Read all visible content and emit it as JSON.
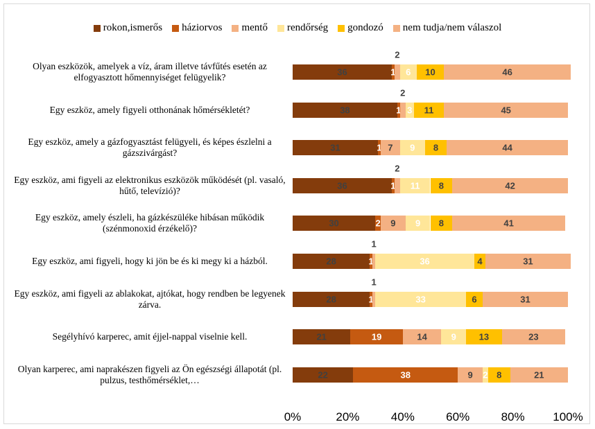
{
  "chart_data": {
    "type": "stacked_bar_horizontal",
    "categories": [
      "Olyan eszközök, amelyek a víz, áram illetve távfűtés esetén az elfogyasztott hőmennyiséget felügyelik?",
      "Egy eszköz, amely figyeli otthonának hőmérsékletét?",
      "Egy eszköz, amely a gázfogyasztást felügyeli, és képes észlelni a gázszivárgást?",
      "Egy eszköz, ami figyeli az elektronikus eszközök működését (pl. vasaló, hűtő, televízió)?",
      "Egy eszköz, amely észleli, ha gázkészüléke hibásan működik (szénmonoxid érzékelő)?",
      "Egy eszköz, ami figyeli, hogy ki jön be és ki megy ki a házból.",
      "Egy eszköz, ami figyeli az ablakokat, ajtókat, hogy rendben be legyenek zárva.",
      "Segélyhívó karperec, amit éjjel-nappal viselnie kell.",
      "Olyan karperec, ami naprakészen figyeli az Ön egészségi állapotát (pl. pulzus, testhőmérséklet,…"
    ],
    "series": [
      {
        "name": "rokon,ismerős",
        "color": "#843c0c",
        "values": [
          36,
          38,
          31,
          36,
          30,
          28,
          28,
          21,
          22
        ]
      },
      {
        "name": "háziorvos",
        "color": "#c55a11",
        "values": [
          1,
          1,
          1,
          1,
          2,
          1,
          1,
          19,
          38
        ]
      },
      {
        "name": "mentő",
        "color": "#f4b183",
        "values": [
          2,
          2,
          7,
          2,
          9,
          1,
          1,
          14,
          9
        ]
      },
      {
        "name": "rendőrség",
        "color": "#ffe699",
        "values": [
          6,
          3,
          9,
          11,
          9,
          36,
          33,
          9,
          2
        ]
      },
      {
        "name": "gondozó",
        "color": "#ffc000",
        "values": [
          10,
          11,
          8,
          8,
          8,
          4,
          6,
          13,
          8
        ]
      },
      {
        "name": "nem tudja/nem válaszol",
        "color": "#f4b183",
        "values": [
          46,
          45,
          44,
          42,
          41,
          31,
          31,
          23,
          21
        ]
      }
    ],
    "xlim": [
      0,
      100
    ],
    "xticks": [
      {
        "value": 0,
        "label": "0%"
      },
      {
        "value": 20,
        "label": "20%"
      },
      {
        "value": 40,
        "label": "40%"
      },
      {
        "value": 60,
        "label": "60%"
      },
      {
        "value": 80,
        "label": "80%"
      },
      {
        "value": 100,
        "label": "100%"
      }
    ]
  }
}
